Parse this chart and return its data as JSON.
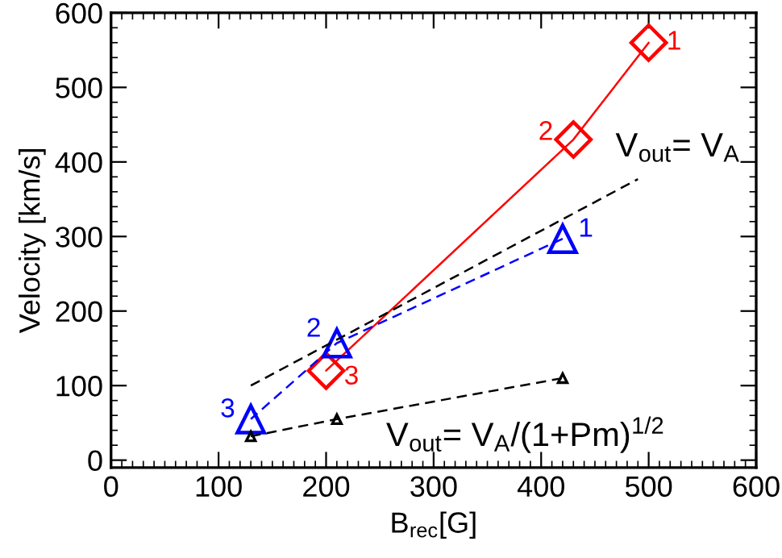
{
  "chart_data": {
    "type": "line",
    "xlabel": "B$_{rec}$[G]",
    "ylabel": "Velocity [km/s]",
    "xlim": [
      0,
      600
    ],
    "ylim": [
      -10,
      600
    ],
    "xticks": [
      0,
      100,
      200,
      300,
      400,
      500,
      600
    ],
    "yticks": [
      0,
      100,
      200,
      300,
      400,
      500,
      600
    ],
    "grid": false,
    "legend": false,
    "annotations": [
      {
        "text": "1",
        "x": 500,
        "y": 560
      },
      {
        "text": "2",
        "x": 430,
        "y": 430
      },
      {
        "text": "3",
        "x": 200,
        "y": 120
      },
      {
        "text": "1",
        "x": 420,
        "y": 297
      },
      {
        "text": "2",
        "x": 210,
        "y": 157
      },
      {
        "text": "3",
        "x": 130,
        "y": 55
      },
      {
        "text": "V$_{out}$= V$_{A}$",
        "x": 490,
        "y": 377
      },
      {
        "text": "V$_{out}$= V$_{A}$/(1+Pm)$^{1/2}$",
        "x": 210,
        "y": 55
      }
    ],
    "series": [
      {
        "color": "#ff0000",
        "x": [
          500,
          430,
          200
        ],
        "values": [
          560,
          430,
          120
        ],
        "marker": "diamond",
        "line_style": "solid"
      },
      {
        "color": "#0000ff",
        "x": [
          420,
          210,
          130
        ],
        "values": [
          297,
          157,
          55
        ],
        "marker": "triangle",
        "line_style": "dashed"
      },
      {
        "color": "#000000",
        "x": [
          130,
          490
        ],
        "values": [
          100,
          377
        ],
        "marker": "none",
        "line_style": "dashed"
      },
      {
        "color": "#000000",
        "x": [
          130,
          210,
          420
        ],
        "values": [
          32,
          55,
          110
        ],
        "marker": "triangle",
        "line_style": "dashed"
      }
    ]
  }
}
